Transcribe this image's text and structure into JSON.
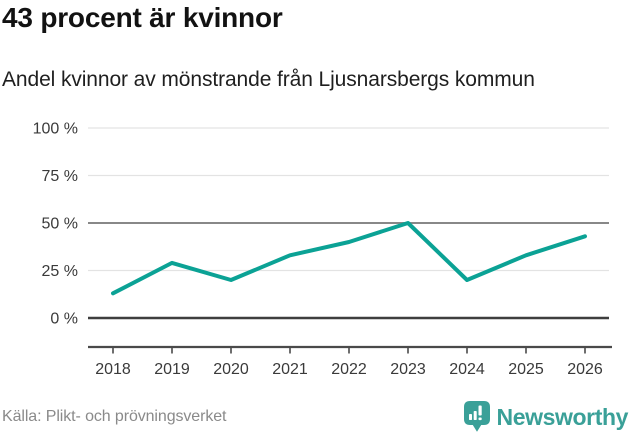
{
  "header": {
    "title": "43 procent är kvinnor",
    "subtitle": "Andel kvinnor av mönstrande från Ljusnarsbergs kommun"
  },
  "chart_data": {
    "type": "line",
    "x": [
      2018,
      2019,
      2020,
      2021,
      2022,
      2023,
      2024,
      2025,
      2026
    ],
    "values": [
      13,
      29,
      20,
      33,
      40,
      50,
      20,
      33,
      43
    ],
    "unit": "%",
    "ylim": [
      0,
      100
    ],
    "yticks": [
      0,
      25,
      50,
      75,
      100
    ],
    "ytick_label_format": "{v} %",
    "emphasized_gridlines": [
      0,
      50
    ],
    "grid": true,
    "legend": "none",
    "line_color": "#0ba295"
  },
  "footer": {
    "source": "Källa: Plikt- och prövningsverket",
    "brand": "Newsworthy"
  },
  "icons": {
    "brand_logo": "newsworthy-badge-bar-chart-icon"
  },
  "colors": {
    "accent_teal": "#0ba295",
    "brand_teal": "#3aa098",
    "grid_light": "#e3e3e3",
    "grid_mid": "#888888",
    "grid_zero": "#3e3e3e",
    "axis": "#4a4a4a",
    "tick_label": "#3a3a3a",
    "text_dark": "#121212",
    "text_gray": "#8a8a8a"
  }
}
